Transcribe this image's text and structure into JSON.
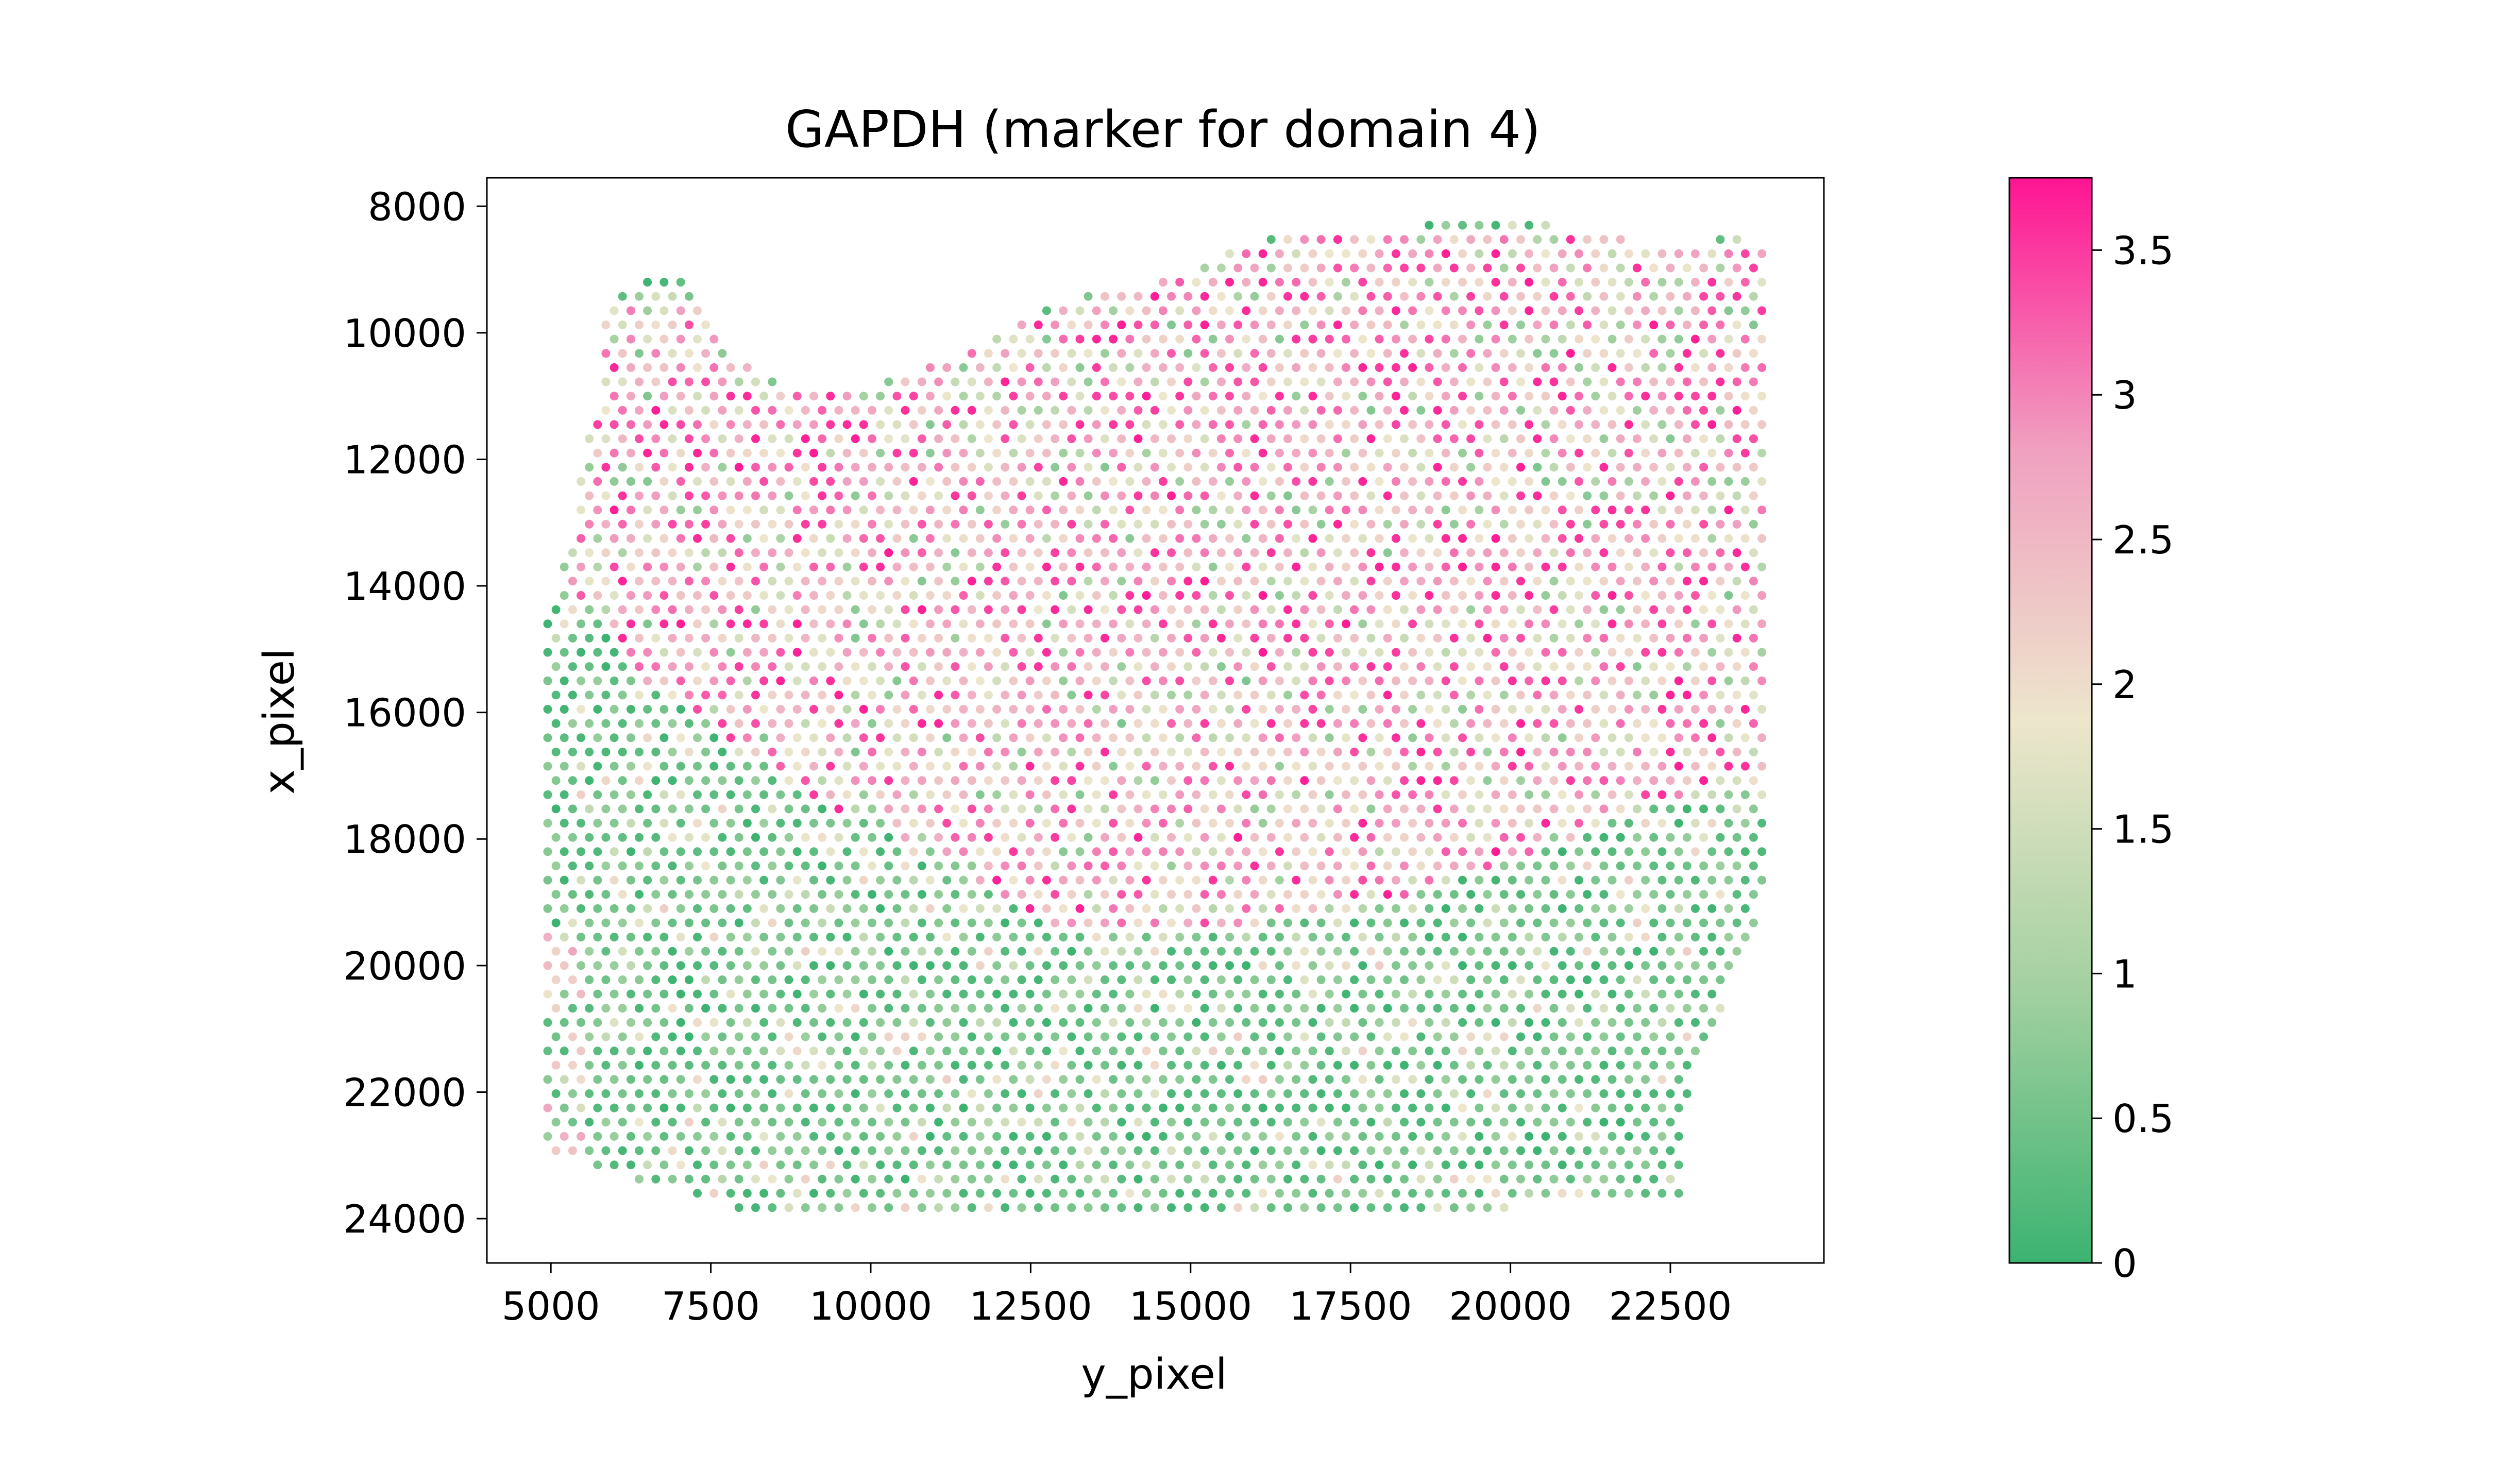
{
  "chart_data": {
    "type": "scatter",
    "title": "GAPDH (marker for domain 4)",
    "xlabel": "y_pixel",
    "ylabel": "x_pixel",
    "xlim": [
      4000,
      24900
    ],
    "ylim": [
      24700,
      7550
    ],
    "y_inverted": true,
    "x_ticks": [
      5000,
      7500,
      10000,
      12500,
      15000,
      17500,
      20000,
      22500
    ],
    "y_ticks": [
      8000,
      10000,
      12000,
      14000,
      16000,
      18000,
      20000,
      22000,
      24000
    ],
    "grid": false,
    "colorbar": {
      "range": [
        0,
        3.75
      ],
      "ticks": [
        0,
        0.5,
        1,
        1.5,
        2,
        2.5,
        3,
        3.5
      ],
      "tick_labels": [
        "0",
        "0.5",
        "1",
        "1.5",
        "2",
        "2.5",
        "3",
        "3.5"
      ],
      "colors": [
        "#3cb371",
        "#a2d0a0",
        "#ede6cc",
        "#f0a0c0",
        "#ff1493"
      ]
    },
    "tissue_boundary": [
      [
        5000,
        14300
      ],
      [
        5300,
        13300
      ],
      [
        5500,
        12000
      ],
      [
        5750,
        11000
      ],
      [
        5800,
        9700
      ],
      [
        6100,
        9350
      ],
      [
        6600,
        9050
      ],
      [
        7100,
        9050
      ],
      [
        7400,
        9500
      ],
      [
        7900,
        10300
      ],
      [
        8500,
        10800
      ],
      [
        9800,
        10850
      ],
      [
        11500,
        10300
      ],
      [
        13000,
        9500
      ],
      [
        14800,
        9100
      ],
      [
        15600,
        8600
      ],
      [
        17000,
        8350
      ],
      [
        18600,
        8300
      ],
      [
        20800,
        8300
      ],
      [
        22500,
        8650
      ],
      [
        23400,
        8450
      ],
      [
        23950,
        8650
      ],
      [
        24000,
        14000
      ],
      [
        24050,
        18800
      ],
      [
        23700,
        19600
      ],
      [
        23100,
        21200
      ],
      [
        22800,
        21800
      ],
      [
        22650,
        23700
      ],
      [
        21500,
        23750
      ],
      [
        19500,
        23850
      ],
      [
        15000,
        23900
      ],
      [
        11000,
        23950
      ],
      [
        9000,
        24000
      ],
      [
        8000,
        23850
      ],
      [
        6000,
        23300
      ],
      [
        5200,
        23000
      ],
      [
        4950,
        22900
      ],
      [
        4950,
        14300
      ]
    ],
    "expression_pattern": {
      "high_region_polygon": [
        [
          5500,
          12000
        ],
        [
          5800,
          9700
        ],
        [
          7400,
          9500
        ],
        [
          9800,
          10850
        ],
        [
          15600,
          8600
        ],
        [
          18600,
          8300
        ],
        [
          23950,
          8650
        ],
        [
          24000,
          17000
        ],
        [
          22000,
          17500
        ],
        [
          20000,
          18400
        ],
        [
          17500,
          19200
        ],
        [
          16000,
          19300
        ],
        [
          15000,
          19500
        ],
        [
          13000,
          19500
        ],
        [
          11000,
          18200
        ],
        [
          9000,
          17300
        ],
        [
          6500,
          15500
        ],
        [
          5300,
          14000
        ]
      ],
      "high_mean": 2.6,
      "low_mean": 0.45
    }
  }
}
